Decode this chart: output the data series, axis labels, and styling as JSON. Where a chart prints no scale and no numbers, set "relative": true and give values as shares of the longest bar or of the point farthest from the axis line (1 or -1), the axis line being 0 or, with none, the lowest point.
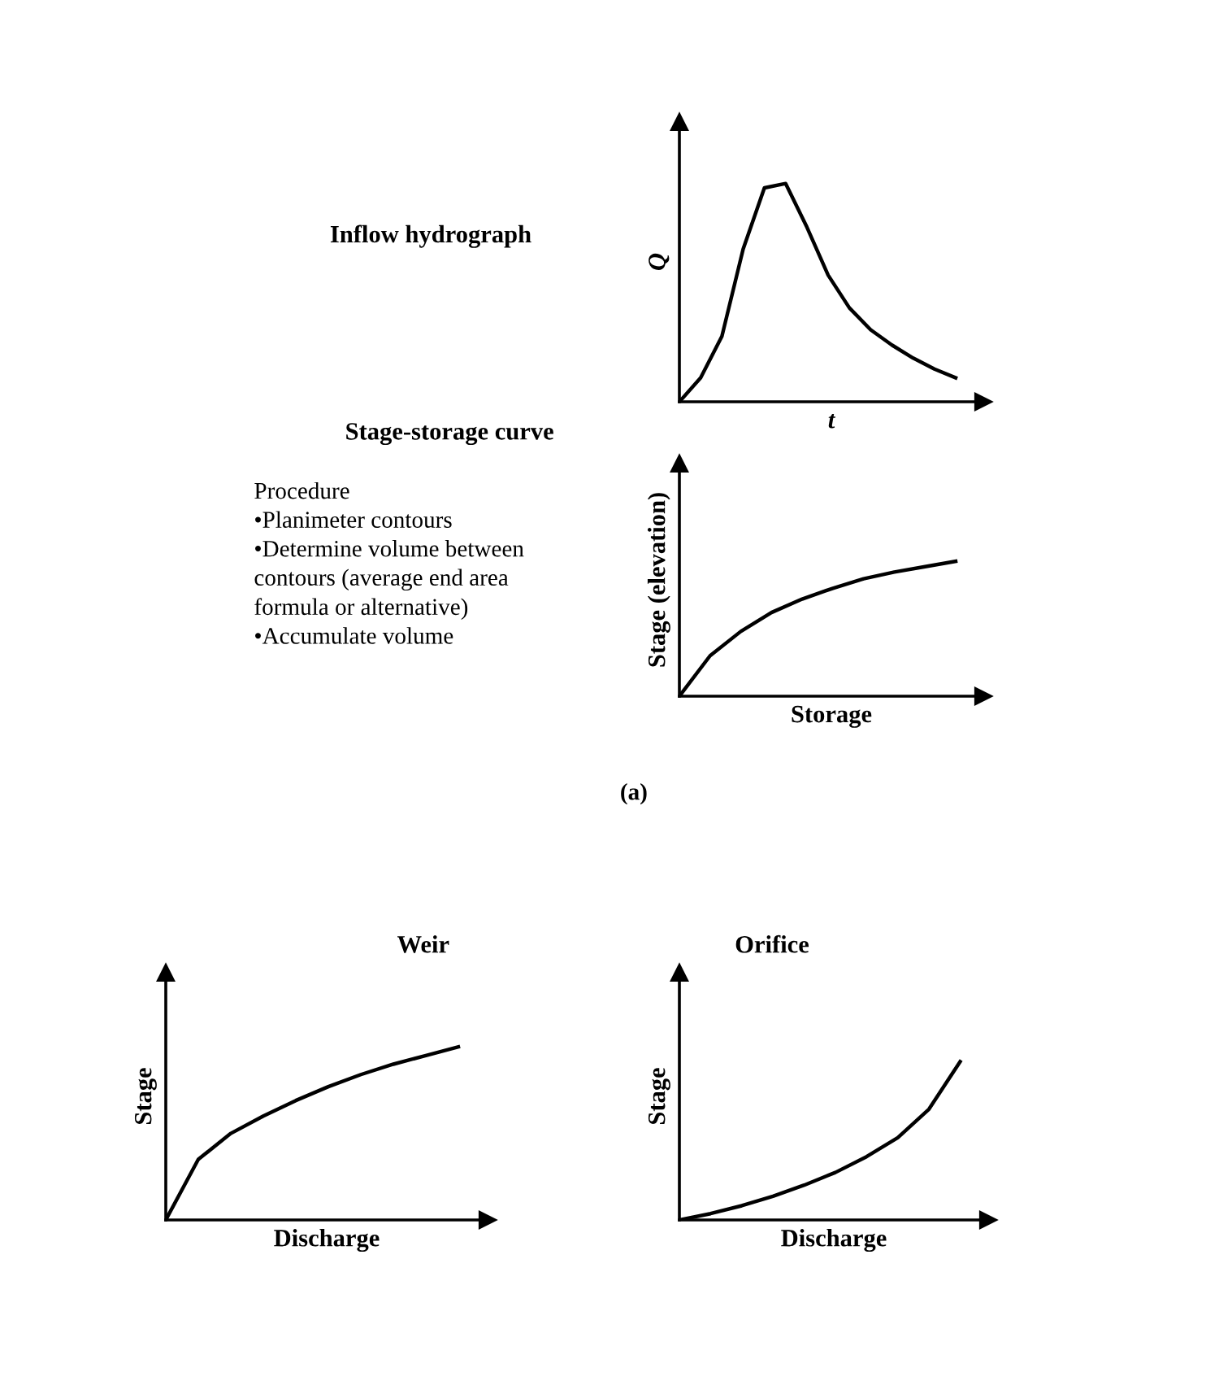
{
  "chart_data": [
    {
      "type": "line",
      "relative": true,
      "title": "Inflow hydrograph",
      "ylabel": "Q",
      "xlabel": "t",
      "categories": [
        null,
        null,
        null,
        null,
        null,
        null,
        null,
        null,
        null,
        null,
        null,
        null,
        null,
        null
      ],
      "color": "#000000",
      "values": [
        0,
        0.11,
        0.3,
        0.7,
        0.98,
        1.0,
        0.8,
        0.58,
        0.43,
        0.33,
        0.26,
        0.2,
        0.15,
        0.11
      ]
    },
    {
      "type": "line",
      "relative": true,
      "title": "Stage-storage curve",
      "ylabel": "Stage (elevation)",
      "xlabel": "Storage",
      "categories": [
        null,
        null,
        null,
        null,
        null,
        null,
        null,
        null,
        null,
        null
      ],
      "color": "#000000",
      "values": [
        0,
        0.3,
        0.48,
        0.62,
        0.72,
        0.8,
        0.87,
        0.92,
        0.96,
        1.0
      ],
      "annotations": [
        "Procedure\n•Planimeter contours\n•Determine volume between\ncontours (average end area\nformula or alternative)\n•Accumulate volume",
        "(a)"
      ]
    },
    {
      "type": "line",
      "relative": true,
      "title": "Weir",
      "ylabel": "Stage",
      "xlabel": "Discharge",
      "categories": [
        null,
        null,
        null,
        null,
        null,
        null,
        null,
        null,
        null,
        null
      ],
      "color": "#000000",
      "values": [
        0,
        0.35,
        0.5,
        0.6,
        0.69,
        0.77,
        0.84,
        0.9,
        0.95,
        1.0
      ]
    },
    {
      "type": "line",
      "relative": true,
      "title": "Orifice",
      "ylabel": "Stage",
      "xlabel": "Discharge",
      "categories": [
        null,
        null,
        null,
        null,
        null,
        null,
        null,
        null,
        null,
        null
      ],
      "color": "#000000",
      "values": [
        0,
        0.04,
        0.09,
        0.15,
        0.22,
        0.3,
        0.4,
        0.52,
        0.7,
        1.0
      ]
    }
  ]
}
